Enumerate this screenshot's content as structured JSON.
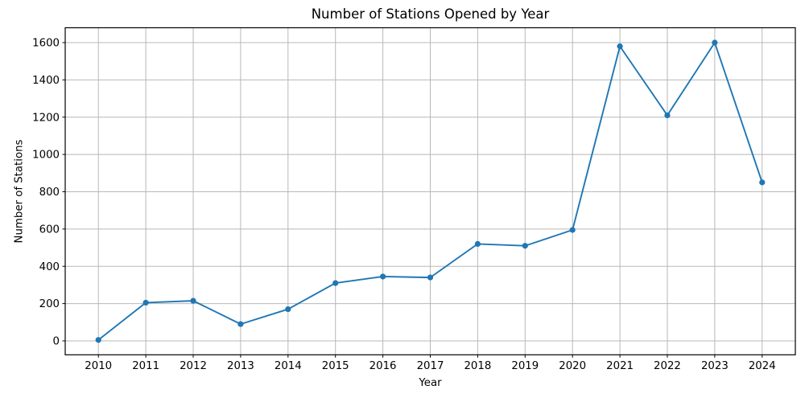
{
  "chart_data": {
    "type": "line",
    "title": "Number of Stations Opened by Year",
    "xlabel": "Year",
    "ylabel": "Number of Stations",
    "x": [
      2010,
      2011,
      2012,
      2013,
      2014,
      2015,
      2016,
      2017,
      2018,
      2019,
      2020,
      2021,
      2022,
      2023,
      2024
    ],
    "values": [
      5,
      205,
      215,
      90,
      170,
      310,
      345,
      340,
      520,
      510,
      595,
      1580,
      1210,
      1600,
      850
    ],
    "y_ticks": [
      0,
      200,
      400,
      600,
      800,
      1000,
      1200,
      1400,
      1600
    ],
    "xlim": [
      2009.3,
      2024.7
    ],
    "ylim": [
      -74.75,
      1679.75
    ],
    "grid": true,
    "legend": "none",
    "line_color": "#1f77b4",
    "marker": "circle",
    "grid_color": "#b8b8b8",
    "spine_color": "#000000",
    "text_color": "#000000",
    "background_color": "#ffffff"
  }
}
